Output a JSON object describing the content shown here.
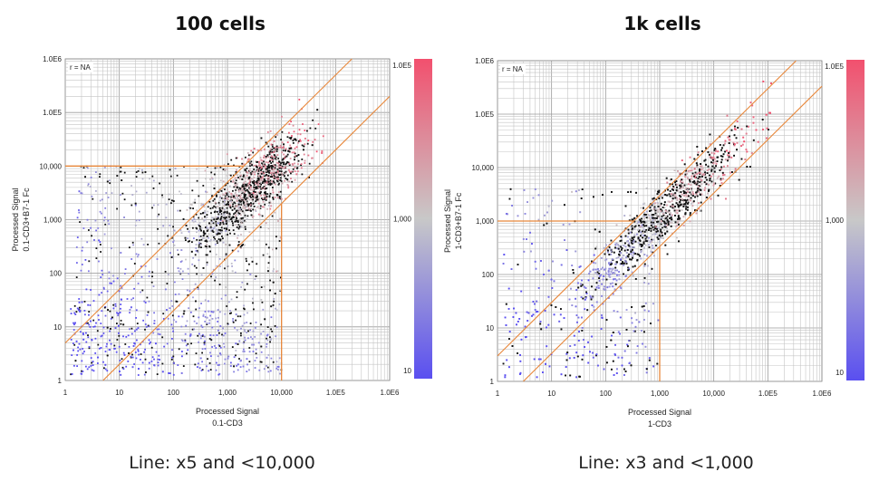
{
  "chart_data": [
    {
      "type": "scatter",
      "title": "100 cells",
      "caption": "Line: x5 and <10,000",
      "xlabel": [
        "Processed Signal",
        "0.1-CD3"
      ],
      "ylabel": [
        "Processed Signal",
        "0.1-CD3+B7-1 Fc"
      ],
      "xscale": "log",
      "yscale": "log",
      "xlim": [
        1,
        1000000
      ],
      "ylim": [
        1,
        1000000
      ],
      "x_tick_labels": [
        "1",
        "10",
        "100",
        "1,000",
        "10,000",
        "1.0E5",
        "1.0E6"
      ],
      "y_tick_labels": [
        "1",
        "10",
        "100",
        "1,000",
        "10,000",
        "1.0E5",
        "1.0E6"
      ],
      "annotation": "r = NA",
      "colorbar": {
        "labels": [
          "1.0E5",
          "1,000",
          "10"
        ],
        "colors": [
          "#f2506e",
          "#c8c8c8",
          "#5a4ff0"
        ]
      },
      "guide_lines": {
        "fold": 5,
        "threshold": 10000
      },
      "grid": true
    },
    {
      "type": "scatter",
      "title": "1k cells",
      "caption": "Line: x3 and <1,000",
      "xlabel": [
        "Processed Signal",
        "1-CD3"
      ],
      "ylabel": [
        "Processed Signal",
        "1-CD3+B7-1 Fc"
      ],
      "xscale": "log",
      "yscale": "log",
      "xlim": [
        1,
        1000000
      ],
      "ylim": [
        1,
        1000000
      ],
      "x_tick_labels": [
        "1",
        "10",
        "100",
        "1,000",
        "10,000",
        "1.0E5",
        "1.0E6"
      ],
      "y_tick_labels": [
        "1",
        "10",
        "100",
        "1,000",
        "10,000",
        "1.0E5",
        "1.0E6"
      ],
      "annotation": "r = NA",
      "colorbar": {
        "labels": [
          "1.0E5",
          "1,000",
          "10"
        ],
        "colors": [
          "#f2506e",
          "#c8c8c8",
          "#5a4ff0"
        ]
      },
      "guide_lines": {
        "fold": 3,
        "threshold": 1000
      },
      "grid": true
    }
  ]
}
